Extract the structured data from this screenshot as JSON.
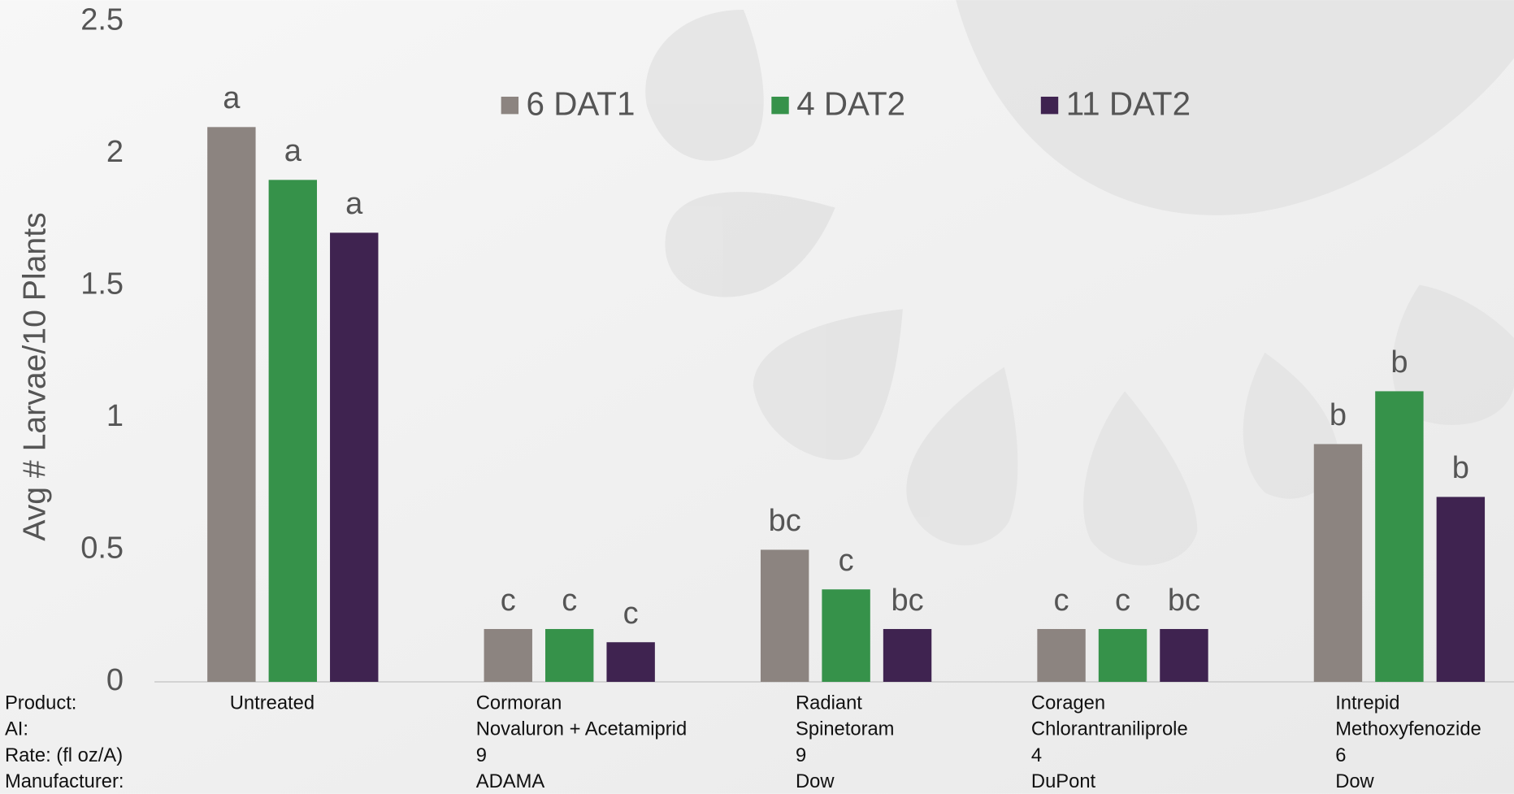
{
  "chart_data": {
    "type": "bar",
    "y_label": "Avg # Larvae/10 Plants",
    "ylim": [
      0,
      2.5
    ],
    "yticks": [
      0,
      0.5,
      1,
      1.5,
      2,
      2.5
    ],
    "row_labels": [
      "Product:",
      "AI:",
      "Rate: (fl oz/A)",
      "Manufacturer:"
    ],
    "categories": [
      "Untreated",
      "Cormoran",
      "Radiant",
      "Coragen",
      "Intrepid"
    ],
    "ai": [
      null,
      "Novaluron + Acetamiprid",
      "Spinetoram",
      "Chlorantraniliprole",
      "Methoxyfenozide"
    ],
    "rate": [
      null,
      9,
      9,
      4,
      6
    ],
    "manufacturer": [
      null,
      "ADAMA",
      "Dow",
      "DuPont",
      "Dow"
    ],
    "series": [
      {
        "name": "6 DAT1",
        "color": "#8c8480",
        "values": [
          2.1,
          0.2,
          0.5,
          0.2,
          0.9
        ],
        "letters": [
          "a",
          "c",
          "bc",
          "c",
          "b"
        ]
      },
      {
        "name": "4 DAT2",
        "color": "#36924a",
        "values": [
          1.9,
          0.2,
          0.35,
          0.2,
          1.1
        ],
        "letters": [
          "a",
          "c",
          "c",
          "c",
          "b"
        ]
      },
      {
        "name": "11 DAT2",
        "color": "#3f2350",
        "values": [
          1.7,
          0.15,
          0.2,
          0.2,
          0.7
        ],
        "letters": [
          "a",
          "c",
          "bc",
          "bc",
          "b"
        ]
      }
    ],
    "legend": "top"
  }
}
